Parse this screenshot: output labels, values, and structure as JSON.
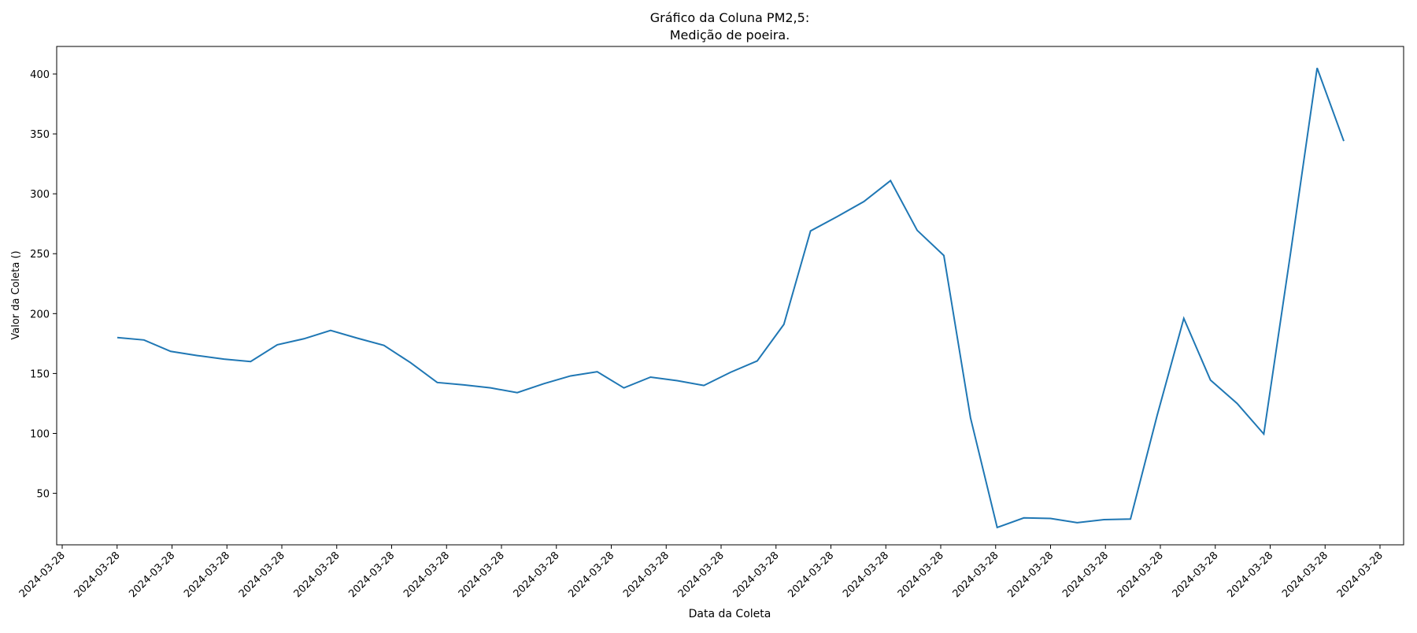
{
  "chart_data": {
    "type": "line",
    "title": "Gráfico da Coluna PM2,5:",
    "subtitle": "Medição de poeira.",
    "xlabel": "Data da Coleta",
    "ylabel": "Valor da Coleta ()",
    "x_tick_labels": [
      "2024-03-28",
      "2024-03-28",
      "2024-03-28",
      "2024-03-28",
      "2024-03-28",
      "2024-03-28",
      "2024-03-28",
      "2024-03-28",
      "2024-03-28",
      "2024-03-28",
      "2024-03-28",
      "2024-03-28",
      "2024-03-28",
      "2024-03-28",
      "2024-03-28",
      "2024-03-28",
      "2024-03-28",
      "2024-03-28",
      "2024-03-28",
      "2024-03-28",
      "2024-03-28",
      "2024-03-28",
      "2024-03-28",
      "2024-03-28",
      "2024-03-28"
    ],
    "y_ticks": [
      50,
      100,
      150,
      200,
      250,
      300,
      350,
      400
    ],
    "ylim": [
      7,
      423
    ],
    "grid": false,
    "line_color": "#1f77b4",
    "series": [
      {
        "values": [
          180,
          178,
          168.5,
          165,
          162,
          160,
          174,
          179,
          186,
          179.5,
          173.5,
          159,
          142.5,
          140.5,
          138,
          134,
          141.5,
          148,
          151.5,
          138,
          147,
          144,
          140,
          151,
          160.5,
          191,
          269,
          281,
          293.5,
          311,
          269.5,
          248.5,
          113,
          21.5,
          29.5,
          29,
          25.5,
          28,
          28.5,
          115,
          196,
          144.5,
          125,
          99.5,
          250,
          405,
          344
        ]
      }
    ]
  }
}
